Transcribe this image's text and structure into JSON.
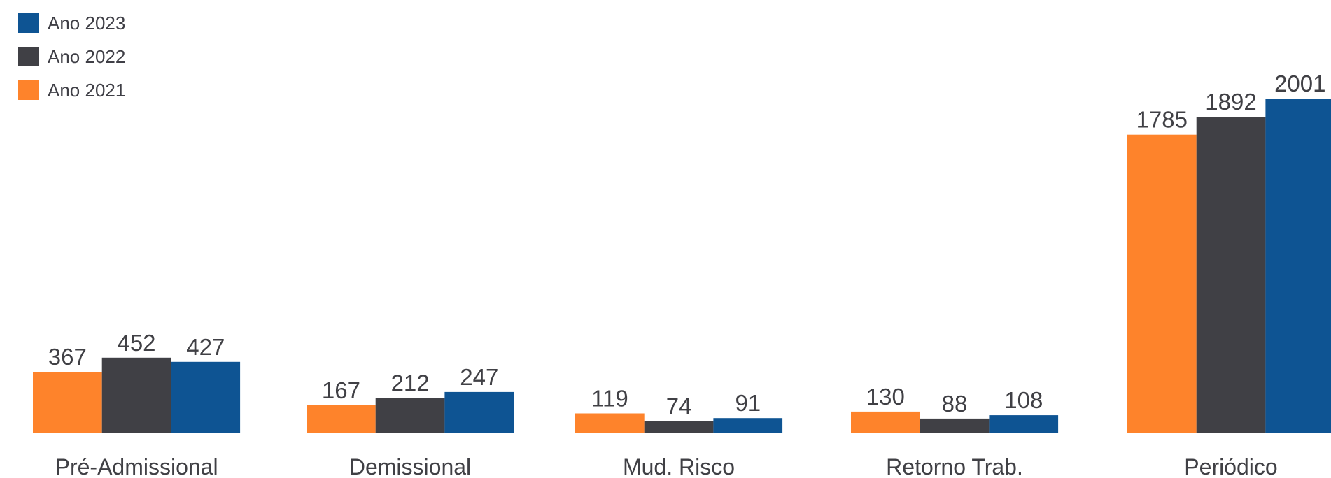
{
  "chart_data": {
    "type": "bar",
    "categories": [
      "Pré-Admissional",
      "Demissional",
      "Mud. Risco",
      "Retorno Trab.",
      "Periódico"
    ],
    "series": [
      {
        "name": "Ano 2021",
        "color": "#FE832B",
        "values": [
          367,
          167,
          119,
          130,
          1785
        ]
      },
      {
        "name": "Ano 2022",
        "color": "#404045",
        "values": [
          452,
          212,
          74,
          88,
          1892
        ]
      },
      {
        "name": "Ano 2023",
        "color": "#0E5493",
        "values": [
          427,
          247,
          91,
          108,
          2001
        ]
      }
    ],
    "legend": {
      "placement": "top-left",
      "order": [
        "Ano 2023",
        "Ano 2022",
        "Ano 2021"
      ]
    },
    "data_labels": true,
    "grid": false,
    "ylim": [
      0,
      2001
    ]
  }
}
